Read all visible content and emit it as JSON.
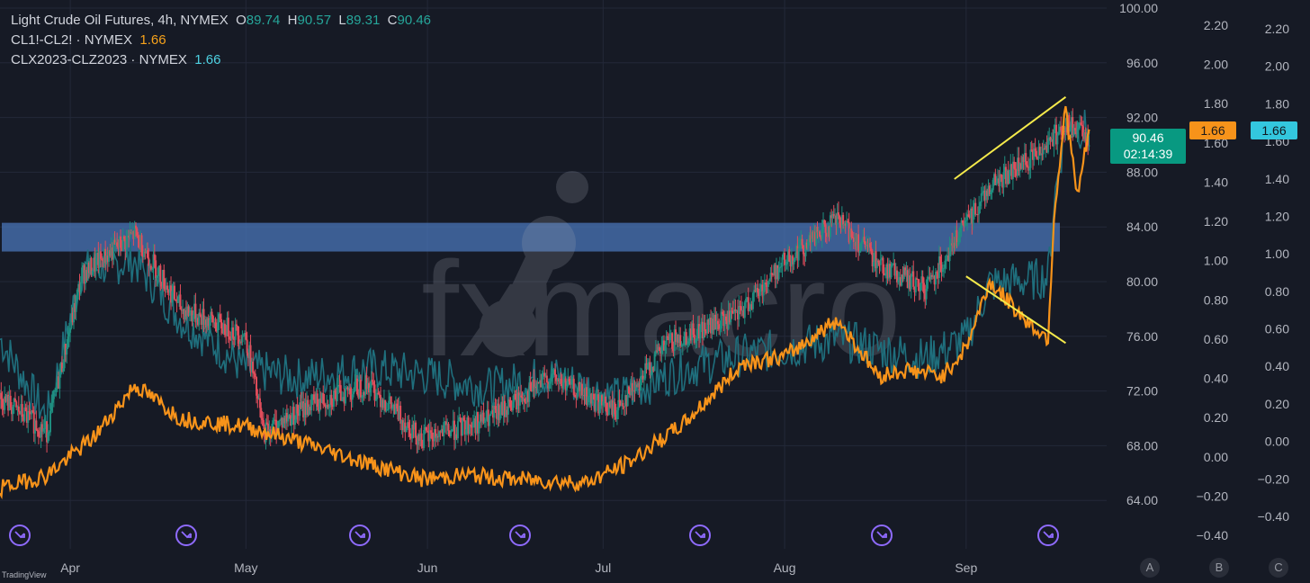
{
  "legend": {
    "symbol": "Light Crude Oil Futures, 4h, NYMEX",
    "o_label": "O",
    "o_value": "89.74",
    "h_label": "H",
    "h_value": "90.57",
    "l_label": "L",
    "l_value": "89.31",
    "c_label": "C",
    "c_value": "90.46",
    "spread1": "CL1!-CL2! · NYMEX",
    "spread1_value": "1.66",
    "spread2": "CLX2023-CLZ2023 · NYMEX",
    "spread2_value": "1.66"
  },
  "price_tag": {
    "price": "90.46",
    "countdown": "02:14:39"
  },
  "orange_tag": "1.66",
  "cyan_tag": "1.66",
  "scale_buttons": [
    "A",
    "B",
    "C"
  ],
  "watermark_text": "fxmacro",
  "footer": "TradingView",
  "colors": {
    "background": "#161a25",
    "candle_up": "#1f8f80",
    "candle_down": "#e24d5b",
    "spread_orange": "#f7931a",
    "spread_teal": "#1f6f7d",
    "zone": "#4a75b8",
    "trendline": "#f5ea4b",
    "event_icon": "#8f6bff"
  },
  "chart_data": {
    "type": "line",
    "title": "Light Crude Oil Futures, 4h, NYMEX",
    "x_labels": [
      "Apr",
      "May",
      "Jun",
      "Jul",
      "Aug",
      "Sep"
    ],
    "price_axis": {
      "ticks": [
        "100.00",
        "96.00",
        "92.00",
        "88.00",
        "84.00",
        "80.00",
        "76.00",
        "72.00",
        "68.00",
        "64.00"
      ],
      "range": [
        62.5,
        100
      ]
    },
    "axis_b": {
      "ticks": [
        "2.20",
        "2.00",
        "1.80",
        "1.60",
        "1.40",
        "1.20",
        "1.00",
        "0.80",
        "0.60",
        "0.40",
        "0.20",
        "0.00",
        "−0.20",
        "−0.40"
      ],
      "range": [
        -0.4,
        2.2
      ]
    },
    "axis_c": {
      "ticks": [
        "2.20",
        "2.00",
        "1.80",
        "1.60",
        "1.40",
        "1.20",
        "1.00",
        "0.80",
        "0.60",
        "0.40",
        "0.20",
        "0.00",
        "−0.20",
        "−0.40"
      ],
      "range": [
        -0.42,
        2.2
      ]
    },
    "resistance_zone": [
      82.2,
      84.3
    ],
    "series": [
      {
        "name": "Light Crude Oil Futures",
        "kind": "candles",
        "x": [
          "2023-03-20",
          "2023-03-28",
          "2023-04-03",
          "2023-04-12",
          "2023-04-20",
          "2023-05-01",
          "2023-05-04",
          "2023-05-12",
          "2023-05-22",
          "2023-05-31",
          "2023-06-12",
          "2023-06-22",
          "2023-07-03",
          "2023-07-12",
          "2023-07-24",
          "2023-08-01",
          "2023-08-10",
          "2023-08-18",
          "2023-08-25",
          "2023-09-05",
          "2023-09-12",
          "2023-09-18",
          "2023-09-22"
        ],
        "values": [
          71.5,
          69,
          80.5,
          83.5,
          78,
          76,
          69,
          71,
          72.5,
          68.5,
          70,
          73,
          70.5,
          75.5,
          77.5,
          81.5,
          84.5,
          81,
          79.5,
          87,
          89,
          91.5,
          90.46
        ]
      },
      {
        "name": "CL1!-CL2!",
        "kind": "line",
        "x": [
          "2023-03-20",
          "2023-03-28",
          "2023-04-05",
          "2023-04-12",
          "2023-04-20",
          "2023-05-01",
          "2023-05-10",
          "2023-05-20",
          "2023-05-31",
          "2023-06-08",
          "2023-06-15",
          "2023-06-28",
          "2023-07-05",
          "2023-07-15",
          "2023-07-25",
          "2023-08-01",
          "2023-08-10",
          "2023-08-17",
          "2023-08-22",
          "2023-08-28",
          "2023-09-01",
          "2023-09-05",
          "2023-09-12",
          "2023-09-15",
          "2023-09-16",
          "2023-09-18",
          "2023-09-20",
          "2023-09-22"
        ],
        "values": [
          -0.25,
          -0.18,
          0.02,
          0.3,
          0.12,
          0.08,
          0.0,
          -0.1,
          -0.2,
          -0.18,
          -0.2,
          -0.22,
          -0.12,
          0.1,
          0.42,
          0.45,
          0.65,
          0.35,
          0.38,
          0.35,
          0.5,
          0.85,
          0.62,
          0.55,
          1.2,
          1.78,
          1.3,
          1.66
        ]
      },
      {
        "name": "CLX2023-CLZ2023",
        "kind": "line",
        "x": [
          "2023-03-20",
          "2023-03-28",
          "2023-04-03",
          "2023-04-12",
          "2023-04-20",
          "2023-05-01",
          "2023-05-10",
          "2023-05-22",
          "2023-05-31",
          "2023-06-12",
          "2023-06-22",
          "2023-07-03",
          "2023-07-15",
          "2023-07-25",
          "2023-08-01",
          "2023-08-10",
          "2023-08-17",
          "2023-08-25",
          "2023-09-01",
          "2023-09-05",
          "2023-09-12",
          "2023-09-15",
          "2023-09-16",
          "2023-09-18",
          "2023-09-22"
        ],
        "values": [
          0.6,
          0.2,
          0.95,
          1.0,
          0.7,
          0.45,
          0.4,
          0.45,
          0.42,
          0.35,
          0.42,
          0.3,
          0.45,
          0.52,
          0.55,
          0.6,
          0.55,
          0.5,
          0.6,
          0.88,
          0.9,
          0.92,
          1.3,
          1.7,
          1.66
        ]
      }
    ]
  }
}
